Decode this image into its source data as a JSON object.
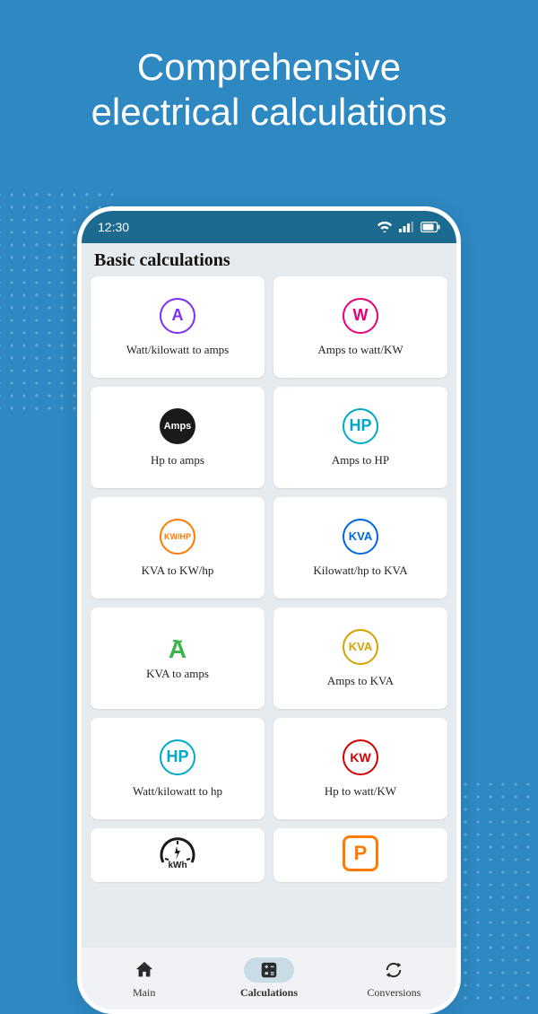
{
  "headline_line1": "Comprehensive",
  "headline_line2": "electrical calculations",
  "statusBar": {
    "time": "12:30"
  },
  "sectionTitle": "Basic calculations",
  "cards": [
    {
      "iconText": "A",
      "iconColor": "#7b2ff7",
      "label": "Watt/kilowatt to amps",
      "style": "circle"
    },
    {
      "iconText": "W",
      "iconColor": "#e6007a",
      "label": "Amps to watt/KW",
      "style": "circle"
    },
    {
      "iconText": "Amps",
      "iconColor": "#1a1a1a",
      "label": "Hp to amps",
      "style": "filled"
    },
    {
      "iconText": "HP",
      "iconColor": "#00a9c7",
      "label": "Amps to HP",
      "style": "circle"
    },
    {
      "iconText": "KW/HP",
      "iconColor": "#ff7b00",
      "label": "KVA to KW/hp",
      "style": "circle",
      "fontSize": "9px"
    },
    {
      "iconText": "KVA",
      "iconColor": "#0066e6",
      "label": "Kilowatt/hp to KVA",
      "style": "circle",
      "fontSize": "13px"
    },
    {
      "iconText": "A",
      "iconColor": "#3bb54a",
      "label": "KVA to amps",
      "style": "tilde"
    },
    {
      "iconText": "KVA",
      "iconColor": "#d4a300",
      "label": "Amps to KVA",
      "style": "circle",
      "fontSize": "13px"
    },
    {
      "iconText": "HP",
      "iconColor": "#00a9c7",
      "label": "Watt/kilowatt to hp",
      "style": "circle"
    },
    {
      "iconText": "KW",
      "iconColor": "#d40000",
      "label": "Hp to watt/KW",
      "style": "circle",
      "fontSize": "14px"
    },
    {
      "iconText": "kWh",
      "iconColor": "#1a1a1a",
      "label": "",
      "style": "gauge"
    },
    {
      "iconText": "P",
      "iconColor": "#ff7b00",
      "label": "",
      "style": "square"
    }
  ],
  "nav": {
    "items": [
      {
        "label": "Main",
        "icon": "home"
      },
      {
        "label": "Calculations",
        "icon": "calc",
        "active": true
      },
      {
        "label": "Conversions",
        "icon": "sync"
      }
    ]
  },
  "colors": {
    "background": "#2e88c2",
    "statusBar": "#1c6a8f",
    "content": "#e6ebef",
    "card": "#ffffff",
    "navPill": "#c9dce6"
  }
}
